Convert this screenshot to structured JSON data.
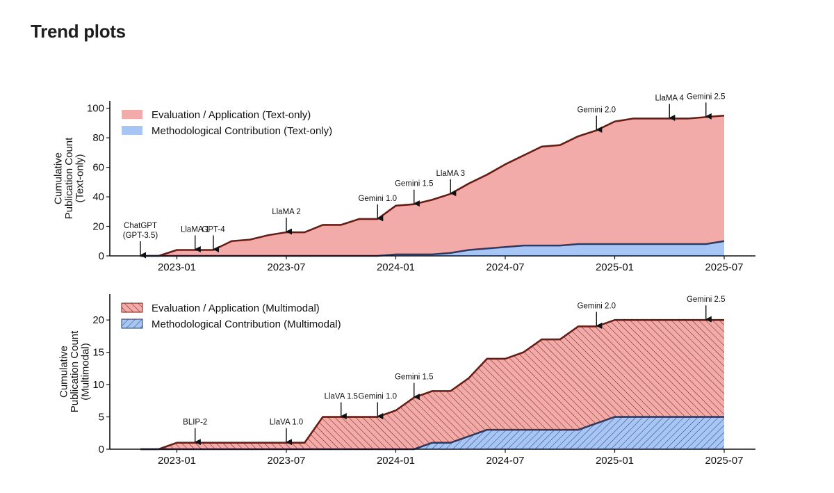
{
  "page": {
    "heading": "Trend plots"
  },
  "colors": {
    "eval_fill": "#f2aba8",
    "eval_line": "#6b1b12",
    "method_fill": "#a8c6f5",
    "method_line": "#2a3b66"
  },
  "chart_data": [
    {
      "type": "area",
      "stacking": "overlay",
      "hatched": false,
      "title": "",
      "xlabel": "",
      "ylabel": [
        "Cumulative",
        "Publication Count",
        "(Text-only)"
      ],
      "x_tick_labels": [
        "2023-01",
        "2023-07",
        "2024-01",
        "2024-07",
        "2025-01",
        "2025-07"
      ],
      "y_ticks": [
        0,
        20,
        40,
        60,
        80,
        100
      ],
      "ylim": [
        0,
        105
      ],
      "legend_position": "upper-left",
      "months": [
        "2022-11",
        "2022-12",
        "2023-01",
        "2023-02",
        "2023-03",
        "2023-04",
        "2023-05",
        "2023-06",
        "2023-07",
        "2023-08",
        "2023-09",
        "2023-10",
        "2023-11",
        "2023-12",
        "2024-01",
        "2024-02",
        "2024-03",
        "2024-04",
        "2024-05",
        "2024-06",
        "2024-07",
        "2024-08",
        "2024-09",
        "2024-10",
        "2024-11",
        "2024-12",
        "2025-01",
        "2025-02",
        "2025-03",
        "2025-04",
        "2025-05",
        "2025-06",
        "2025-07"
      ],
      "series": [
        {
          "name": "Evaluation / Application (Text-only)",
          "values": [
            0,
            0,
            4,
            4,
            4,
            10,
            11,
            14,
            16,
            16,
            21,
            21,
            25,
            25,
            34,
            35,
            38,
            42,
            49,
            55,
            62,
            68,
            74,
            75,
            81,
            85,
            91,
            93,
            93,
            93,
            93,
            94,
            95
          ]
        },
        {
          "name": "Methodological Contribution (Text-only)",
          "values": [
            0,
            0,
            0,
            0,
            0,
            0,
            0,
            0,
            0,
            0,
            0,
            0,
            0,
            0,
            1,
            1,
            1,
            2,
            4,
            5,
            6,
            7,
            7,
            7,
            8,
            8,
            8,
            8,
            8,
            8,
            8,
            8,
            10
          ]
        }
      ],
      "annotations": [
        {
          "lines": [
            "ChatGPT",
            "(GPT-3.5)"
          ],
          "month": "2022-11"
        },
        {
          "lines": [
            "LlaMA 1"
          ],
          "month": "2023-02"
        },
        {
          "lines": [
            "GPT-4"
          ],
          "month": "2023-03"
        },
        {
          "lines": [
            "LlaMA 2"
          ],
          "month": "2023-07"
        },
        {
          "lines": [
            "Gemini 1.0"
          ],
          "month": "2023-12"
        },
        {
          "lines": [
            "Gemini 1.5"
          ],
          "month": "2024-02"
        },
        {
          "lines": [
            "LlaMA 3"
          ],
          "month": "2024-04"
        },
        {
          "lines": [
            "Gemini 2.0"
          ],
          "month": "2024-12"
        },
        {
          "lines": [
            "LlaMA 4"
          ],
          "month": "2025-04"
        },
        {
          "lines": [
            "Gemini 2.5"
          ],
          "month": "2025-06"
        }
      ]
    },
    {
      "type": "area",
      "stacking": "overlay",
      "hatched": true,
      "title": "",
      "xlabel": "",
      "ylabel": [
        "Cumulative",
        "Publication Count",
        "(Multimodal)"
      ],
      "x_tick_labels": [
        "2023-01",
        "2023-07",
        "2024-01",
        "2024-07",
        "2025-01",
        "2025-07"
      ],
      "y_ticks": [
        0,
        5,
        10,
        15,
        20
      ],
      "ylim": [
        0,
        24
      ],
      "legend_position": "upper-left",
      "months": [
        "2022-11",
        "2022-12",
        "2023-01",
        "2023-02",
        "2023-03",
        "2023-04",
        "2023-05",
        "2023-06",
        "2023-07",
        "2023-08",
        "2023-09",
        "2023-10",
        "2023-11",
        "2023-12",
        "2024-01",
        "2024-02",
        "2024-03",
        "2024-04",
        "2024-05",
        "2024-06",
        "2024-07",
        "2024-08",
        "2024-09",
        "2024-10",
        "2024-11",
        "2024-12",
        "2025-01",
        "2025-02",
        "2025-03",
        "2025-04",
        "2025-05",
        "2025-06",
        "2025-07"
      ],
      "series": [
        {
          "name": "Evaluation / Application (Multimodal)",
          "values": [
            0,
            0,
            1,
            1,
            1,
            1,
            1,
            1,
            1,
            1,
            5,
            5,
            5,
            5,
            6,
            8,
            9,
            9,
            11,
            14,
            14,
            15,
            17,
            17,
            19,
            19,
            20,
            20,
            20,
            20,
            20,
            20,
            20
          ]
        },
        {
          "name": "Methodological Contribution (Multimodal)",
          "values": [
            0,
            0,
            0,
            0,
            0,
            0,
            0,
            0,
            0,
            0,
            0,
            0,
            0,
            0,
            0,
            0,
            1,
            1,
            2,
            3,
            3,
            3,
            3,
            3,
            3,
            4,
            5,
            5,
            5,
            5,
            5,
            5,
            5
          ]
        }
      ],
      "annotations": [
        {
          "lines": [
            "BLIP-2"
          ],
          "month": "2023-02"
        },
        {
          "lines": [
            "LlaVA 1.0"
          ],
          "month": "2023-07"
        },
        {
          "lines": [
            "LlaVA 1.5"
          ],
          "month": "2023-10"
        },
        {
          "lines": [
            "Gemini 1.0"
          ],
          "month": "2023-12"
        },
        {
          "lines": [
            "Gemini 1.5"
          ],
          "month": "2024-02"
        },
        {
          "lines": [
            "Gemini 2.0"
          ],
          "month": "2024-12"
        },
        {
          "lines": [
            "Gemini 2.5"
          ],
          "month": "2025-06"
        }
      ]
    }
  ]
}
